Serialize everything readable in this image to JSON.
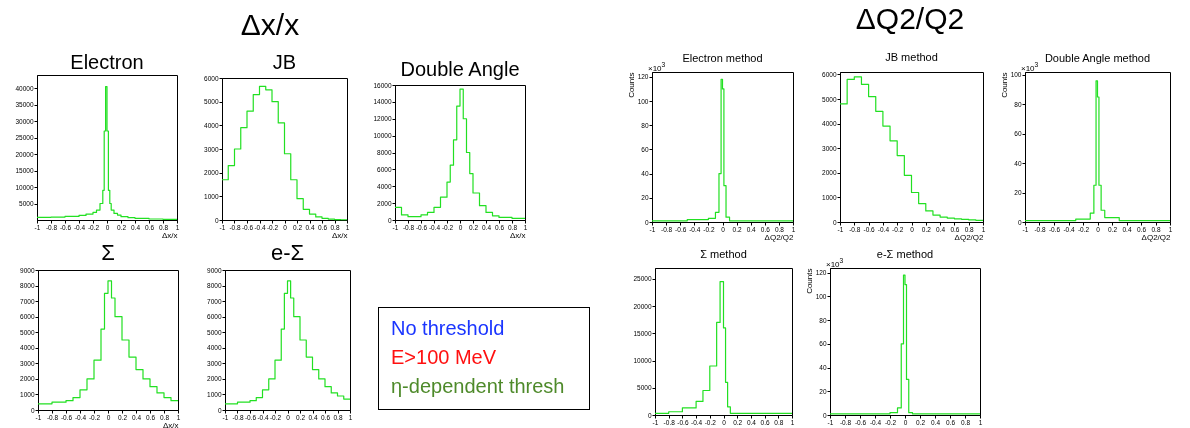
{
  "chart_data": [
    {
      "type": "other",
      "title": "Δx/x"
    },
    {
      "type": "histogram",
      "title": "Electron",
      "xlabel": "Δx/x",
      "xlim": [
        -1,
        1
      ],
      "xticks": [
        -1,
        -0.8,
        -0.6,
        -0.4,
        -0.2,
        0,
        0.2,
        0.4,
        0.6,
        0.8,
        1
      ],
      "ylim": [
        0,
        44000
      ],
      "yticks": [
        5000,
        10000,
        15000,
        20000,
        25000,
        30000,
        35000,
        40000
      ],
      "bins": [
        -1,
        -0.8,
        -0.6,
        -0.4,
        -0.3,
        -0.2,
        -0.15,
        -0.1,
        -0.06,
        -0.04,
        -0.02,
        0,
        0.02,
        0.04,
        0.06,
        0.1,
        0.15,
        0.2,
        0.3,
        0.4,
        0.6,
        0.8,
        1
      ],
      "series": [
        {
          "color": "#22e022",
          "values": [
            800,
            900,
            1100,
            1400,
            1800,
            2300,
            3000,
            5000,
            9000,
            27000,
            40500,
            27000,
            9000,
            5000,
            3000,
            2000,
            1500,
            1000,
            700,
            500,
            300,
            200
          ]
        }
      ]
    },
    {
      "type": "histogram",
      "title": "JB",
      "xlabel": "Δx/x",
      "xlim": [
        -1,
        1
      ],
      "xticks": [
        -1,
        -0.8,
        -0.6,
        -0.4,
        -0.2,
        0,
        0.2,
        0.4,
        0.6,
        0.8,
        1
      ],
      "ylim": [
        0,
        6000
      ],
      "yticks": [
        0,
        1000,
        2000,
        3000,
        4000,
        5000,
        6000
      ],
      "bins": [
        -1,
        -0.9,
        -0.8,
        -0.7,
        -0.6,
        -0.5,
        -0.4,
        -0.3,
        -0.2,
        -0.1,
        0,
        0.1,
        0.2,
        0.3,
        0.4,
        0.5,
        0.6,
        0.7,
        0.8,
        0.9,
        1
      ],
      "series": [
        {
          "color": "#22e022",
          "values": [
            1700,
            2300,
            3000,
            3900,
            4600,
            5300,
            5650,
            5500,
            5000,
            4100,
            2800,
            1700,
            900,
            450,
            250,
            130,
            70,
            40,
            20,
            10
          ]
        }
      ]
    },
    {
      "type": "histogram",
      "title": "Double Angle",
      "xlabel": "Δx/x",
      "xlim": [
        -1,
        1
      ],
      "xticks": [
        -1,
        -0.8,
        -0.6,
        -0.4,
        -0.2,
        0,
        0.2,
        0.4,
        0.6,
        0.8,
        1
      ],
      "ylim": [
        0,
        16000
      ],
      "yticks": [
        0,
        2000,
        4000,
        6000,
        8000,
        10000,
        12000,
        14000,
        16000
      ],
      "bins": [
        -1,
        -0.9,
        -0.8,
        -0.7,
        -0.6,
        -0.5,
        -0.4,
        -0.3,
        -0.2,
        -0.15,
        -0.1,
        -0.05,
        0,
        0.05,
        0.1,
        0.15,
        0.2,
        0.3,
        0.4,
        0.5,
        0.6,
        0.8,
        1
      ],
      "series": [
        {
          "color": "#22e022",
          "values": [
            1500,
            600,
            400,
            400,
            600,
            900,
            1500,
            2700,
            4500,
            6500,
            9500,
            13500,
            15500,
            12000,
            8000,
            5500,
            3200,
            1700,
            900,
            500,
            300,
            200
          ]
        }
      ]
    },
    {
      "type": "histogram",
      "title": "Σ",
      "xlabel": "Δx/x",
      "xlim": [
        -1,
        1
      ],
      "xticks": [
        -1,
        -0.8,
        -0.6,
        -0.4,
        -0.2,
        0,
        0.2,
        0.4,
        0.6,
        0.8,
        1
      ],
      "ylim": [
        0,
        9000
      ],
      "yticks": [
        0,
        1000,
        2000,
        3000,
        4000,
        5000,
        6000,
        7000,
        8000,
        9000
      ],
      "bins": [
        -1,
        -0.8,
        -0.6,
        -0.5,
        -0.4,
        -0.3,
        -0.2,
        -0.1,
        -0.05,
        0,
        0.05,
        0.1,
        0.2,
        0.3,
        0.4,
        0.5,
        0.6,
        0.7,
        0.8,
        0.9,
        1
      ],
      "series": [
        {
          "color": "#22e022",
          "values": [
            400,
            500,
            600,
            800,
            1300,
            2000,
            3200,
            5200,
            7500,
            8300,
            7200,
            6000,
            4500,
            3400,
            2600,
            2000,
            1500,
            1100,
            800,
            600
          ]
        }
      ]
    },
    {
      "type": "histogram",
      "title": "e-Σ",
      "xlim": [
        -1,
        1
      ],
      "xticks": [
        -1,
        -0.8,
        -0.6,
        -0.4,
        -0.2,
        0,
        0.2,
        0.4,
        0.6,
        0.8,
        1
      ],
      "ylim": [
        0,
        9000
      ],
      "yticks": [
        0,
        1000,
        2000,
        3000,
        4000,
        5000,
        6000,
        7000,
        8000,
        9000
      ],
      "bins": [
        -1,
        -0.8,
        -0.6,
        -0.5,
        -0.4,
        -0.3,
        -0.2,
        -0.1,
        -0.05,
        0,
        0.05,
        0.1,
        0.2,
        0.3,
        0.4,
        0.5,
        0.6,
        0.7,
        0.8,
        0.9,
        1
      ],
      "series": [
        {
          "color": "#22e022",
          "values": [
            400,
            500,
            600,
            800,
            1300,
            2000,
            3200,
            5200,
            7500,
            8300,
            7200,
            6000,
            4500,
            3400,
            2600,
            2000,
            1500,
            1100,
            900,
            700
          ]
        }
      ]
    },
    {
      "type": "other",
      "annotations": [
        "No threshold",
        "E>100 MeV",
        "η-dependent thresh"
      ],
      "colors": [
        "#1a35ff",
        "#ff1010",
        "#4e8a2a"
      ]
    },
    {
      "type": "other",
      "title": "ΔQ2/Q2"
    },
    {
      "type": "histogram",
      "title": "Electron method",
      "xlabel": "ΔQ2/Q2",
      "ylabel": "Counts",
      "annotations": [
        "×10$^{3}$"
      ],
      "xlim": [
        -1,
        1
      ],
      "xticks": [
        -1,
        -0.8,
        -0.6,
        -0.4,
        -0.2,
        0,
        0.2,
        0.4,
        0.6,
        0.8,
        1
      ],
      "ylim": [
        0,
        124
      ],
      "yticks": [
        0,
        20,
        40,
        60,
        80,
        100,
        120
      ],
      "bins": [
        -1,
        -0.5,
        -0.2,
        -0.1,
        -0.05,
        -0.02,
        0,
        0.02,
        0.05,
        0.1,
        1
      ],
      "series": [
        {
          "color": "#22e022",
          "values": [
            1,
            2,
            3,
            8,
            40,
            118,
            110,
            30,
            4,
            1
          ]
        }
      ]
    },
    {
      "type": "histogram",
      "title": "JB method",
      "xlabel": "ΔQ2/Q2",
      "xlim": [
        -1,
        1
      ],
      "xticks": [
        -1,
        -0.8,
        -0.6,
        -0.4,
        -0.2,
        0,
        0.2,
        0.4,
        0.6,
        0.8,
        1
      ],
      "ylim": [
        0,
        6100
      ],
      "yticks": [
        0,
        1000,
        2000,
        3000,
        4000,
        5000,
        6000
      ],
      "bins": [
        -1,
        -0.9,
        -0.8,
        -0.7,
        -0.6,
        -0.5,
        -0.4,
        -0.3,
        -0.2,
        -0.1,
        0,
        0.1,
        0.2,
        0.3,
        0.4,
        0.5,
        0.6,
        0.7,
        0.8,
        0.9,
        1
      ],
      "series": [
        {
          "color": "#22e022",
          "values": [
            4800,
            5800,
            5900,
            5600,
            5100,
            4500,
            3900,
            3300,
            2700,
            1900,
            1200,
            750,
            450,
            280,
            200,
            160,
            130,
            110,
            90,
            70
          ]
        }
      ]
    },
    {
      "type": "histogram",
      "title": "Double Angle method",
      "xlabel": "ΔQ2/Q2",
      "ylabel": "Counts",
      "annotations": [
        "×10$^{3}$"
      ],
      "xlim": [
        -1,
        1
      ],
      "xticks": [
        -1,
        -0.8,
        -0.6,
        -0.4,
        -0.2,
        0,
        0.2,
        0.4,
        0.6,
        0.8,
        1
      ],
      "ylim": [
        0,
        102
      ],
      "yticks": [
        0,
        20,
        40,
        60,
        80,
        100
      ],
      "bins": [
        -1,
        -0.3,
        -0.1,
        -0.05,
        -0.02,
        0,
        0.02,
        0.05,
        0.1,
        0.3,
        1
      ],
      "series": [
        {
          "color": "#22e022",
          "values": [
            1,
            2,
            6,
            25,
            96,
            85,
            25,
            8,
            3,
            1
          ]
        }
      ]
    },
    {
      "type": "histogram",
      "title": "Σ method",
      "xlim": [
        -1,
        1
      ],
      "xticks": [
        -1,
        -0.8,
        -0.6,
        -0.4,
        -0.2,
        0,
        0.2,
        0.4,
        0.6,
        0.8,
        1
      ],
      "ylim": [
        0,
        27000
      ],
      "yticks": [
        0,
        5000,
        10000,
        15000,
        20000,
        25000
      ],
      "bins": [
        -1,
        -0.8,
        -0.6,
        -0.4,
        -0.3,
        -0.2,
        -0.1,
        -0.05,
        0,
        0.03,
        0.06,
        0.1,
        0.2,
        1
      ],
      "series": [
        {
          "color": "#22e022",
          "values": [
            300,
            600,
            1300,
            2500,
            4500,
            9000,
            17000,
            24500,
            16000,
            6000,
            1500,
            300,
            300
          ]
        }
      ]
    },
    {
      "type": "histogram",
      "title": "e-Σ method",
      "ylabel": "Counts",
      "annotations": [
        "×10$^{3}$"
      ],
      "xlim": [
        -1,
        1
      ],
      "xticks": [
        -1,
        -0.8,
        -0.6,
        -0.4,
        -0.2,
        0,
        0.2,
        0.4,
        0.6,
        0.8,
        1
      ],
      "ylim": [
        0,
        124
      ],
      "yticks": [
        0,
        20,
        40,
        60,
        80,
        100,
        120
      ],
      "bins": [
        -1,
        -0.2,
        -0.1,
        -0.05,
        -0.02,
        0,
        0.02,
        0.05,
        0.1,
        1
      ],
      "series": [
        {
          "color": "#22e022",
          "values": [
            1,
            2,
            6,
            60,
            118,
            110,
            30,
            2,
            1
          ]
        }
      ]
    }
  ]
}
